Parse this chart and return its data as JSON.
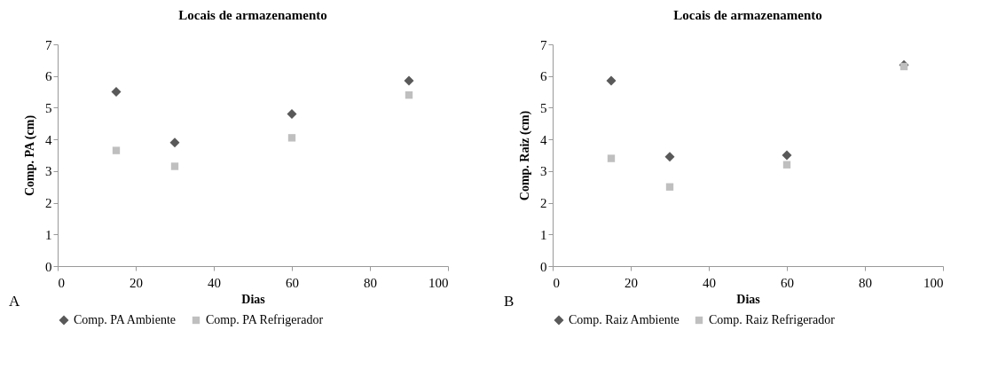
{
  "chart_data": [
    {
      "type": "scatter",
      "title": "Locais de armazenamento",
      "xlabel": "Dias",
      "ylabel": "Comp. PA (cm)",
      "annotations": [
        "A"
      ],
      "x": [
        15,
        30,
        60,
        90
      ],
      "series": [
        {
          "name": "Comp. PA Ambiente",
          "color": "#595959",
          "marker": "diamond",
          "values": [
            5.5,
            3.9,
            4.8,
            5.85
          ]
        },
        {
          "name": "Comp. PA Refrigerador",
          "color": "#bfbfbf",
          "marker": "square",
          "values": [
            3.65,
            3.15,
            4.05,
            5.4
          ]
        }
      ],
      "xlim": [
        0,
        100
      ],
      "xticks": [
        0,
        20,
        40,
        60,
        80,
        100
      ],
      "ylim": [
        0,
        7
      ],
      "yticks": [
        0,
        1,
        2,
        3,
        4,
        5,
        6,
        7
      ],
      "grid": false,
      "legend": "bottom"
    },
    {
      "type": "scatter",
      "title": "Locais de armazenamento",
      "xlabel": "Dias",
      "ylabel": "Comp. Raiz (cm)",
      "annotations": [
        "B"
      ],
      "x": [
        15,
        30,
        60,
        90
      ],
      "series": [
        {
          "name": "Comp. Raiz Ambiente",
          "color": "#595959",
          "marker": "diamond",
          "values": [
            5.85,
            3.45,
            3.5,
            6.35
          ]
        },
        {
          "name": "Comp. Raiz Refrigerador",
          "color": "#bfbfbf",
          "marker": "square",
          "values": [
            3.4,
            2.5,
            3.2,
            6.3
          ]
        }
      ],
      "xlim": [
        0,
        100
      ],
      "xticks": [
        0,
        20,
        40,
        60,
        80,
        100
      ],
      "ylim": [
        0,
        7
      ],
      "yticks": [
        0,
        1,
        2,
        3,
        4,
        5,
        6,
        7
      ],
      "grid": false,
      "legend": "bottom"
    }
  ]
}
